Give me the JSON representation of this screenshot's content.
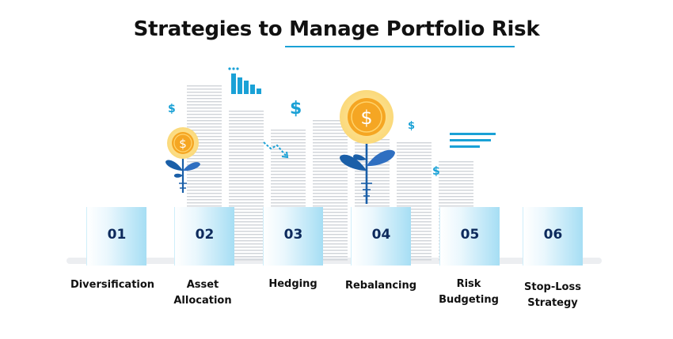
{
  "title": "Strategies to Manage Portfolio Risk",
  "colors": {
    "accent": "#1aa1d6",
    "navy": "#0d2a5c",
    "coin": "#f5a623",
    "leaf": "#1a5fa8"
  },
  "steps": [
    {
      "number": "01",
      "label_lines": [
        "Diversification"
      ]
    },
    {
      "number": "02",
      "label_lines": [
        "Asset",
        "Allocation"
      ]
    },
    {
      "number": "03",
      "label_lines": [
        "Hedging"
      ]
    },
    {
      "number": "04",
      "label_lines": [
        "Rebalancing"
      ]
    },
    {
      "number": "05",
      "label_lines": [
        "Risk",
        "Budgeting"
      ]
    },
    {
      "number": "06",
      "label_lines": [
        "Stop-Loss",
        "Strategy"
      ]
    }
  ],
  "decorations": {
    "dollar_sign": "$"
  }
}
